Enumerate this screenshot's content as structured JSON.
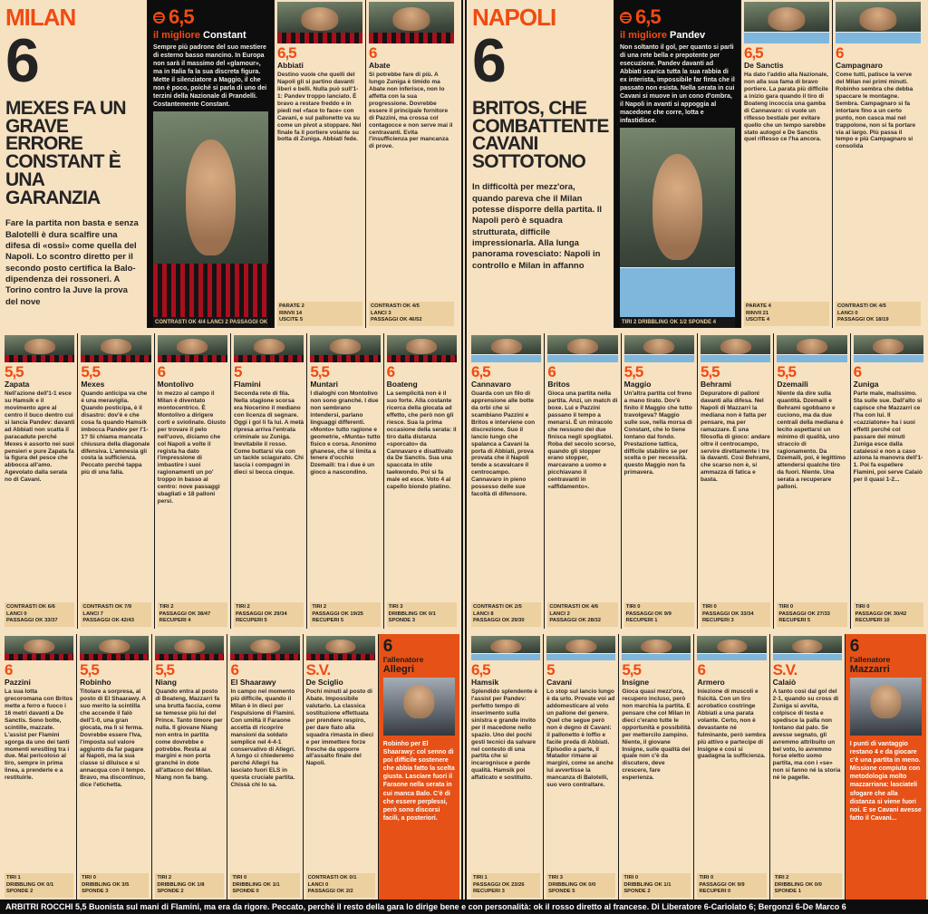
{
  "colors": {
    "accent": "#f04b11",
    "page_bg": "#f6e1c1",
    "stats_bg": "#ecd09f",
    "coach_bg": "#e65117",
    "black_block": "#0d0d0d"
  },
  "milan": {
    "label": "MILAN",
    "rating": "6",
    "headline": "MEXES FA UN GRAVE ERRORE CONSTANT È UNA GARANZIA",
    "body": "Fare la partita non basta e senza Balotelli è dura scalfire una difesa di «ossi» come quella del Napoli. Lo scontro diretto per il secondo posto certifica la Balo-dipendenza dei rossoneri. A Torino contro la Juve la prova del nove",
    "best": {
      "rating": "6,5",
      "label": "il migliore",
      "name": "Constant",
      "body": "Sempre più padrone del suo mestiere di esterno basso mancino. In Europa non sarà il massimo del «glamour», ma in Italia fa la sua discreta figura. Mette il silenziatore a Maggio, il che non è poco, poiché si parla di uno dei terzini della Nazionale di Prandelli. Costantemente Constant.",
      "stats": "CONTRASTI OK 4/4 LANCI 2 PASSAGGI OK 27/34"
    }
  },
  "napoli": {
    "label": "NAPOLI",
    "rating": "6",
    "headline": "BRITOS, CHE COMBATTENTE CAVANI SOTTOTONO",
    "body": "In difficoltà per mezz'ora, quando pareva che il Milan potesse disporre della partita. Il Napoli però è squadra strutturata, difficile impressionarla. Alla lunga panorama rovesciato: Napoli in controllo e Milan in affanno",
    "best": {
      "rating": "6,5",
      "label": "il migliore",
      "name": "Pandev",
      "body": "Non soltanto il gol, per quanto si parli di una rete bella e prepotente per esecuzione. Pandev davanti ad Abbiati scarica tutta la sua rabbia di ex interista, impossibile far finta che il passato non esista. Nella serata in cui Cavani si muove in un cono d'ombra, il Napoli in avanti si appoggia al macedone che corre, lotta e infastidisce.",
      "stats": "TIRI 2 DRIBBLING OK 1/2 SPONDE 4"
    }
  },
  "milan_top": [
    {
      "rating": "6,5",
      "name": "Abbiati",
      "body": "Destino vuole che quelli del Napoli gli si partino davanti liberi e belli. Nulla può sull'1-1: Pandev troppo lanciato. È bravo a restare freddo e in piedi nel «face to face» con Cavani, e sul pallonetto va su come un pivot a stoppare. Nel finale fa il portiere volante su botta di Zuniga. Abbiati fede.",
      "s1": "PARATE 2",
      "s2": "RINVII 14",
      "s3": "USCITE 5"
    },
    {
      "rating": "6",
      "name": "Abate",
      "body": "Si potrebbe fare di più. A lungo Zuniga è timido ma Abate non inferisce, non lo affetta con la sua progressione. Dovrebbe essere il principale fornitore di Pazzini, ma crossa col contagocce e non serve mai il centravanti. Evita l'insufficienza per mancanza di prove.",
      "s1": "CONTRASTI OK 4/5",
      "s2": "LANCI 3",
      "s3": "PASSAGGI OK 46/52"
    }
  ],
  "napoli_top": [
    {
      "rating": "6,5",
      "name": "De Sanctis",
      "body": "Ha dato l'addio alla Nazionale, non alla sua fama di bravo portiere. La parata più difficile a inizio gara quando il tiro di Boateng incoccia una gamba di Cannavaro: ci vuole un riflesso bestiale per evitare quello che un tempo sarebbe stato autogol e De Sanctis quel riflesso ce l'ha ancora.",
      "s1": "PARATE 4",
      "s2": "RINVII 21",
      "s3": "USCITE 4"
    },
    {
      "rating": "6",
      "name": "Campagnaro",
      "body": "Come tutti, patisce la verve del Milan nei primi minuti. Robinho sembra che debba spaccare le montagne. Sembra. Campagnaro si fa intortare fino a un certo punto, non casca mai nel trappolone, non si fa portare via al largo. Più passa il tempo e più Campagnaro si consolida",
      "s1": "CONTRASTI OK 4/5",
      "s2": "LANCI 0",
      "s3": "PASSAGGI OK 18/19"
    }
  ],
  "milan_mid": [
    {
      "rating": "5,5",
      "name": "Zapata",
      "body": "Nell'azione dell'1-1 esce su Hamsik e il movimento apre al centro il buco dentro cui si lancia Pandev: davanti ad Abbiati non scatta il paracadute perché Mexes è assorto nei suoi pensieri e pure Zapata fa la figura del pesce che abbocca all'amo. Agevolato dalla serata no di Cavani.",
      "s1": "CONTRASTI OK 6/6",
      "s2": "LANCI 0",
      "s3": "PASSAGGI OK 33/37"
    },
    {
      "rating": "5,5",
      "name": "Mexes",
      "body": "Quando anticipa va che è una meraviglia. Quando posticipa, è il disastro: dov'è e che cosa fa quando Hamsik imbocca Pandev per l'1-1? Si chiama mancata chiusura della diagonale difensiva. L'amnesia gli costa la sufficienza. Peccato perché tappa più di una falla.",
      "s1": "CONTRASTI OK 7/9",
      "s2": "LANCI 7",
      "s3": "PASSAGGI OK 42/43"
    },
    {
      "rating": "6",
      "name": "Montolivo",
      "body": "In mezzo al campo il Milan è diventato montocentrico. È Montolivo a dirigere corti e sviolinate. Giusto per trovare il pelo nell'uovo, diciamo che col Napoli a volte il regista ha dato l'impressione di imbastire i suoi ragionamenti un po' troppo in basso al centro: nove passaggi sbagliati e 18 palloni persi.",
      "s1": "TIRI 2",
      "s2": "PASSAGGI OK 38/47",
      "s3": "RECUPERI 4"
    },
    {
      "rating": "5",
      "name": "Flamini",
      "body": "Seconda rete di fila. Nella stagione scorsa era Nocerino il mediano con licenza di segnare. Oggi i gol li fa lui. A metà ripresa arriva l'entrata criminale su Zuniga. Inevitabile il rosso. Come buttarsi via con un tackle sciagurato. Chi lascia i compagni in dieci si becca cinque.",
      "s1": "TIRI 2",
      "s2": "PASSAGGI OK 29/34",
      "s3": "RECUPERI 5"
    },
    {
      "rating": "5,5",
      "name": "Muntari",
      "body": "I dialoghi con Montolivo non sono granché. I due non sembrano intendersi, parlano linguaggi differenti. «Monto» tutto ragione e geometrie, «Munta» tutto fisico e corsa. Anonimo ghanese, che si limita a tenere d'occhio Dzemaili: tra i due è un gioco a nascondino.",
      "s1": "TIRI 2",
      "s2": "PASSAGGI OK 19/25",
      "s3": "RECUPERI 5"
    },
    {
      "rating": "6",
      "name": "Boateng",
      "body": "La semplicità non è il suo forte. Alla costante ricerca della giocata ad effetto, che però non gli riesce. Sua la prima occasione della serata: il tiro dalla distanza «sporcato» da Cannavaro e disattivato da De Sanctis. Sua una spaccata in stile taekwondo. Poi si fa male ed esce. Voto 4 al capello biondo platino.",
      "s1": "TIRI 3",
      "s2": "DRIBBLING OK 0/1",
      "s3": "SPONDE 3"
    }
  ],
  "napoli_mid": [
    {
      "rating": "6,5",
      "name": "Cannavaro",
      "body": "Guarda con un filo di apprensione alle botte da orbi che si scambiano Pazzini e Britos e interviene con discrezione. Suo il lancio lungo che spalanca a Cavani la porta di Abbiati, prova provata che il Napoli tende a scavalcare il centrocampo. Cannavaro in pieno possesso delle sue facoltà di difensore.",
      "s1": "CONTRASTI OK 2/5",
      "s2": "LANCI 8",
      "s3": "PASSAGGI OK 29/30"
    },
    {
      "rating": "6",
      "name": "Britos",
      "body": "Gioca una partita nella partita. Anzi, un match di boxe. Lui e Pazzini passano il tempo a menarsi. È un miracolo che nessuno dei due finisca negli spogliatoi. Roba del secolo scorso, quando gli stopper erano stopper, marcavano a uomo e picchiavano il centravanti in «affidamento».",
      "s1": "CONTRASTI OK 4/6",
      "s2": "LANCI 2",
      "s3": "PASSAGGI OK 28/32"
    },
    {
      "rating": "5,5",
      "name": "Maggio",
      "body": "Un'altra partita col freno a mano tirato. Dov'è finito il Maggio che tutto travolgeva? Maggio sulle sue, nella morsa di Constant, che lo tiene lontano dal fondo. Prestazione tattica, difficile stabilire se per scelta o per necessità. questo Maggio non fa primavera.",
      "s1": "TIRI 0",
      "s2": "PASSAGGI OK 9/9",
      "s3": "RECUPERI 1"
    },
    {
      "rating": "5,5",
      "name": "Behrami",
      "body": "Depuratore di palloni davanti alla difesa. Nel Napoli di Mazzarri la mediana non è fatta per pensare, ma per ramazzare. È una filosofia di gioco: andare oltre il centrocampo, servire direttamente i tre là davanti. Così Behrami, che scarso non è, si ammazza di fatica e basta.",
      "s1": "TIRI 0",
      "s2": "PASSAGGI OK 33/34",
      "s3": "RECUPERI 3"
    },
    {
      "rating": "5,5",
      "name": "Dzemaili",
      "body": "Niente da dire sulla quantità. Dzemaili e Behrami sgobbano e cuciono, ma da due centrali della mediana è lecito aspettarsi un minimo di qualità, uno straccio di ragionamento. Da Dzemaili, poi, è legittimo attendersi qualche tiro da fuori. Niente. Una serata a recuperare palloni.",
      "s1": "TIRI 0",
      "s2": "PASSAGGI OK 27/33",
      "s3": "RECUPERI 5"
    },
    {
      "rating": "6",
      "name": "Zuniga",
      "body": "Parte male, malissimo. Sta sulle sue. Dall'alto si capisce che Mazzarri ce l'ha con lui. Il «cazziatone» ha i suoi effetti perché col passare dei minuti Zuniga esce dalla catalessi e non a caso aziona la manovra dell'1-1. Poi fa espellere Flamini, poi serve Calaiò per il quasi 1-2...",
      "s1": "TIRI 0",
      "s2": "PASSAGGI OK 30/42",
      "s3": "RECUPERI 10"
    }
  ],
  "milan_bot": [
    {
      "rating": "6",
      "name": "Pazzini",
      "body": "La sua lotta grecoromana con Britos mette a ferro e fuoco i 16 metri davanti a De Sanctis. Sono botte, scintille, mazzate. L'assist per Flamini sgorga da uno dei tanti momenti wrestling tra i due. Mai pericoloso al tiro, sempre in prima linea, a prenderle e a restituirle.",
      "s1": "TIRI 1",
      "s2": "DRIBBLING OK 0/1",
      "s3": "SPONDE 2"
    },
    {
      "rating": "5,5",
      "name": "Robinho",
      "body": "Titolare a sorpresa, al posto di El Shaarawy. A suo merito la scintilla che accende il falò dell'1-0, una gran giocata, ma lì si ferma. Dovrebbe essere l'Iva, l'imposta sul valore aggiunto da far pagare al Napoli, ma la sua classe si diluisce e si annacqua con il tempo. Bravo, ma discontinuo, dice l'etichetta.",
      "s1": "TIRI 0",
      "s2": "DRIBBLING OK 3/5",
      "s3": "SPONDE 3"
    },
    {
      "rating": "5,5",
      "name": "Niang",
      "body": "Quando entra al posto di Boateng, Mazzarri fa una brutta faccia, come se temesse più lui del Prince. Tanto timore per nulla. Il giovane Niang non entra in partita come dovrebbe e potrebbe. Resta ai margini e non porta granché in dote all'attacco del Milan. Niang non fa bang.",
      "s1": "TIRI 2",
      "s2": "DRIBBLING OK 1/8",
      "s3": "SPONDE 2"
    },
    {
      "rating": "6",
      "name": "El Shaarawy",
      "body": "In campo nel momento più difficile, quando il Milan è in dieci per l'espulsione di Flamini. Con umiltà il Faraone accetta di ricoprire mansioni da soldato semplice nel 4-4-1 conservativo di Allegri. A lungo ci chiederemo perché Allegri ha lasciato fuori ELS in questa cruciale partita. Chissà chi lo sa.",
      "s1": "TIRI 0",
      "s2": "DRIBBLING OK 1/1",
      "s3": "SPONDE 0"
    },
    {
      "rating": "S.V.",
      "name": "De Sciglio",
      "body": "Pochi minuti al posto di Abate. Impossibile valutarlo. La classica sostituzione effettuata per prendere respiro, per dare fiato alla squadra rimasta in dieci e per immettere forze fresche da opporre all'assalto finale del Napoli.",
      "s1": "CONTRASTI OK 0/1",
      "s2": "LANCI 0",
      "s3": "PASSAGGI OK 2/2"
    }
  ],
  "napoli_bot": [
    {
      "rating": "6,5",
      "name": "Hamsik",
      "body": "Splendido splendente è l'assist per Pandev: perfetto tempo di inserimento sulla sinistra e grande invito per il macedone nello spazio. Uno dei pochi gesti tecnici da salvare nel contesto di una partita che si incarognisce e perde qualità. Hamsik poi affaticato e sostituito.",
      "s1": "TIRI 1",
      "s2": "PASSAGGI OK 23/26",
      "s3": "RECUPERI 3"
    },
    {
      "rating": "5",
      "name": "Cavani",
      "body": "Lo stop sul lancio lungo è da urlo. Provate voi ad addomesticare al volo un pallone del genere. Quel che segue però non è degno di Cavani: il pallonetto è loffio e facile preda di Abbiati. Episodio a parte, il Matador rimane ai margini, come se anche lui avvertisse la mancanza di Balotelli, suo vero contraltare.",
      "s1": "TIRI 3",
      "s2": "DRIBBLING OK 0/0",
      "s3": "SPONDE 5"
    },
    {
      "rating": "5,5",
      "name": "Insigne",
      "body": "Gioca quasi mezz'ora, recupero incluso, però non marchia la partita. E pensare che col Milan in dieci c'erano tutte le opportunità e possibilità per mettercilo zampino. Niente, il giovane Insigne, sulle qualità del quale non c'è da discutere, deve crescere, fare esperienza.",
      "s1": "TIRI 0",
      "s2": "DRIBBLING OK 1/1",
      "s3": "SPONDE 2"
    },
    {
      "rating": "6",
      "name": "Armero",
      "body": "Iniezione di muscoli e fisicità. Con un tiro acrobatico costringe Abbiati a una parata volante. Certo, non è devastante né fulminante, però sembra più attivo e partecipe di Insigne e così si guadagna la sufficienza.",
      "s1": "TIRI 0",
      "s2": "PASSAGGI OK 9/9",
      "s3": "RECUPERI 0"
    },
    {
      "rating": "S.V.",
      "name": "Calaiò",
      "body": "A tanto così dal gol del 2-1, quando su cross di Zuniga si avvita, colpisce di testa e spedisce la palla non lontano dal palo. Se avesse segnato, gli avremmo attribuito un bel voto, lo avremmo forse eletto uomo partita, ma con i «se» non si fanno né la storia né le pagelle.",
      "s1": "TIRI 2",
      "s2": "DRIBBLING OK 0/0",
      "s3": "SPONDE 1"
    }
  ],
  "allegri": {
    "rating": "6",
    "role": "l'allenatore",
    "name": "Allegri",
    "body": "Robinho per El Shaarawy: col senno di poi difficile sostenere che abbia fatto la scelta giusta. Lasciare fuori il Faraone nella serata in cui manca Balo. C'è di che essere perplessi, però sono discorsi facili, a posteriori."
  },
  "mazzarri": {
    "rating": "6",
    "role": "l'allenatore",
    "name": "Mazzarri",
    "body": "I punti di vantaggio restano 4 e da giocare c'è una partita in meno. Missione compiuta con metodologia molto mazzarriana: lasciateli sfogare che alla distanza si viene fuori noi. E se Cavani avesse fatto il Cavani..."
  },
  "referee_bar": "ARBITRI ROCCHI 5,5 Buonista sul mani di Flamini, ma era da rigore. Peccato, perché il resto della gara lo dirige bene e con personalità: ok il rosso diretto al francese. Di Liberatore 6-Cariolato 6; Bergonzi 6-De Marco 6"
}
